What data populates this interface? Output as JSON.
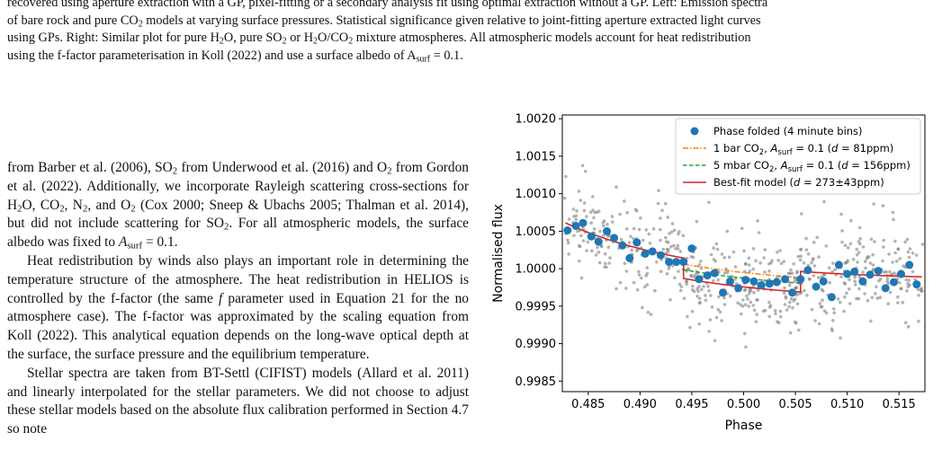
{
  "caption": {
    "line1": "recovered using aperture extraction with a GP, pixel-fitting or a secondary analysis fit using optimal extraction without a GP. Left: Emission spectra",
    "line2": [
      {
        "t": "of bare rock and pure CO"
      },
      {
        "sub": "2"
      },
      {
        "t": " models at varying surface pressures. Statistical significance given relative to joint-fitting aperture extracted light curves"
      }
    ],
    "line3": [
      {
        "t": "using GPs. Right: Similar plot for pure H"
      },
      {
        "sub": "2"
      },
      {
        "t": "O, pure SO"
      },
      {
        "sub": "2"
      },
      {
        "t": " or H"
      },
      {
        "sub": "2"
      },
      {
        "t": "O/CO"
      },
      {
        "sub": "2"
      },
      {
        "t": " mixture atmospheres. All atmospheric models account for heat redistribution"
      }
    ],
    "line4": [
      {
        "t": "using the f-factor parameterisation in Koll (2022) and use a surface albedo of A"
      },
      {
        "sub": "surf"
      },
      {
        "t": " = 0.1."
      }
    ]
  },
  "body": {
    "para1": [
      {
        "t": "from Barber et al. (2006), SO"
      },
      {
        "sub": "2"
      },
      {
        "t": " from Underwood et al. (2016) and O"
      },
      {
        "sub": "2"
      },
      {
        "t": " from Gordon et al. (2022). Additionally, we incorporate Rayleigh scattering cross-sections for H"
      },
      {
        "sub": "2"
      },
      {
        "t": "O, CO"
      },
      {
        "sub": "2"
      },
      {
        "t": ", N"
      },
      {
        "sub": "2"
      },
      {
        "t": ", and O"
      },
      {
        "sub": "2"
      },
      {
        "t": " (Cox 2000; Sneep & Ubachs 2005; Thalman et al. 2014), but did not include scattering for SO"
      },
      {
        "sub": "2"
      },
      {
        "t": ". For all atmospheric models, the surface albedo was fixed to "
      },
      {
        "i": "A"
      },
      {
        "sub": "surf"
      },
      {
        "t": " = 0.1."
      }
    ],
    "para2": [
      {
        "t": "Heat redistribution by winds also plays an important role in determining the temperature structure of the atmosphere. The heat redistribution in HELIOS is controlled by the f-factor (the same "
      },
      {
        "i": "f"
      },
      {
        "t": " parameter used in Equation 21 for the no atmosphere case). The f-factor was approximated by the scaling equation from Koll (2022). This analytical equation depends on the long-wave optical depth at the surface, the surface pressure and the equilibrium temperature."
      }
    ],
    "para3": [
      {
        "t": "Stellar spectra are taken from BT-Settl (CIFIST) models (Allard et al. 2011) and linearly interpolated for the stellar parameters. We did not choose to adjust these stellar models based on the absolute flux calibration performed in Section 4.7 so note"
      }
    ]
  },
  "chart_data": {
    "type": "scatter",
    "title": "",
    "xlabel": "Phase",
    "ylabel": "Normalised flux",
    "xlim": [
      0.4825,
      0.5175
    ],
    "ylim": [
      0.99836,
      1.00205
    ],
    "xticks": [
      0.485,
      0.49,
      0.495,
      0.5,
      0.505,
      0.51,
      0.515
    ],
    "xtick_labels": [
      "0.485",
      "0.490",
      "0.495",
      "0.500",
      "0.505",
      "0.510",
      "0.515"
    ],
    "yticks": [
      0.9985,
      0.999,
      0.9995,
      1.0,
      1.0005,
      1.001,
      1.0015,
      1.002
    ],
    "ytick_labels": [
      "0.9985",
      "0.9990",
      "0.9995",
      "1.0000",
      "1.0005",
      "1.0010",
      "1.0015",
      "1.0020"
    ],
    "grid": false,
    "legend_position": "top-right",
    "colors": {
      "binned": "#1f77b4",
      "raw": "#808080",
      "co2_1bar": "#ff7f0e",
      "co2_5mbar": "#2ca02c",
      "bestfit": "#d62728"
    },
    "legend": [
      {
        "label": "Phase folded (4 minute bins)"
      },
      {
        "label": "1 bar CO₂, A_surf = 0.1 (d = 81ppm)",
        "parts": [
          {
            "t": "1 bar CO"
          },
          {
            "sub": "2"
          },
          {
            "t": ", "
          },
          {
            "i": "A"
          },
          {
            "sub": "surf"
          },
          {
            "t": " = 0.1 ("
          },
          {
            "i": "d"
          },
          {
            "t": " = 81ppm)"
          }
        ]
      },
      {
        "label": "5 mbar CO₂, A_surf = 0.1 (d = 156ppm)",
        "parts": [
          {
            "t": "5 mbar CO"
          },
          {
            "sub": "2"
          },
          {
            "t": ", "
          },
          {
            "i": "A"
          },
          {
            "sub": "surf"
          },
          {
            "t": " = 0.1 ("
          },
          {
            "i": "d"
          },
          {
            "t": " = 156ppm)"
          }
        ]
      },
      {
        "label": "Best-fit model (d = 273±43ppm)",
        "parts": [
          {
            "t": "Best-fit model ("
          },
          {
            "i": "d"
          },
          {
            "t": " = 273±43ppm)"
          }
        ]
      }
    ],
    "binned_points": {
      "x": [
        0.483,
        0.4838,
        0.4845,
        0.4853,
        0.486,
        0.4868,
        0.4875,
        0.4883,
        0.489,
        0.4897,
        0.4905,
        0.4912,
        0.492,
        0.4928,
        0.4935,
        0.4942,
        0.495,
        0.4957,
        0.4965,
        0.4972,
        0.498,
        0.4987,
        0.4995,
        0.5002,
        0.501,
        0.5017,
        0.5025,
        0.5032,
        0.504,
        0.5047,
        0.5055,
        0.5062,
        0.507,
        0.5077,
        0.5085,
        0.5092,
        0.51,
        0.5107,
        0.5115,
        0.5122,
        0.513,
        0.5137,
        0.5145,
        0.5152,
        0.516,
        0.5167
      ],
      "y": [
        1.00051,
        1.00057,
        1.00061,
        1.00043,
        1.00036,
        1.0005,
        1.00041,
        1.00031,
        1.00014,
        1.00035,
        1.0002,
        1.00023,
        1.00018,
        1.00009,
        1.00009,
        1.00009,
        1.00027,
        0.99986,
        0.99991,
        0.99994,
        0.99968,
        0.99983,
        0.99974,
        0.99985,
        0.99983,
        0.99978,
        0.9998,
        0.99982,
        0.99986,
        0.99968,
        0.99986,
        0.99998,
        0.99976,
        0.99983,
        0.99962,
        1.00005,
        0.99993,
        0.99996,
        0.99983,
        0.99992,
        0.99997,
        0.99974,
        0.99982,
        0.99993,
        1.00005,
        0.99979
      ]
    },
    "raw_points": {
      "count": 600,
      "std": 0.00032,
      "description_free": true
    },
    "models": {
      "eclipse": [
        0.4942,
        0.5055
      ],
      "bestfit": {
        "depth_ppm": 273,
        "start": 1.00063,
        "end": 0.99989
      },
      "co2_1bar": {
        "depth_ppm": 81
      },
      "co2_5mbar": {
        "depth_ppm": 156
      }
    }
  }
}
